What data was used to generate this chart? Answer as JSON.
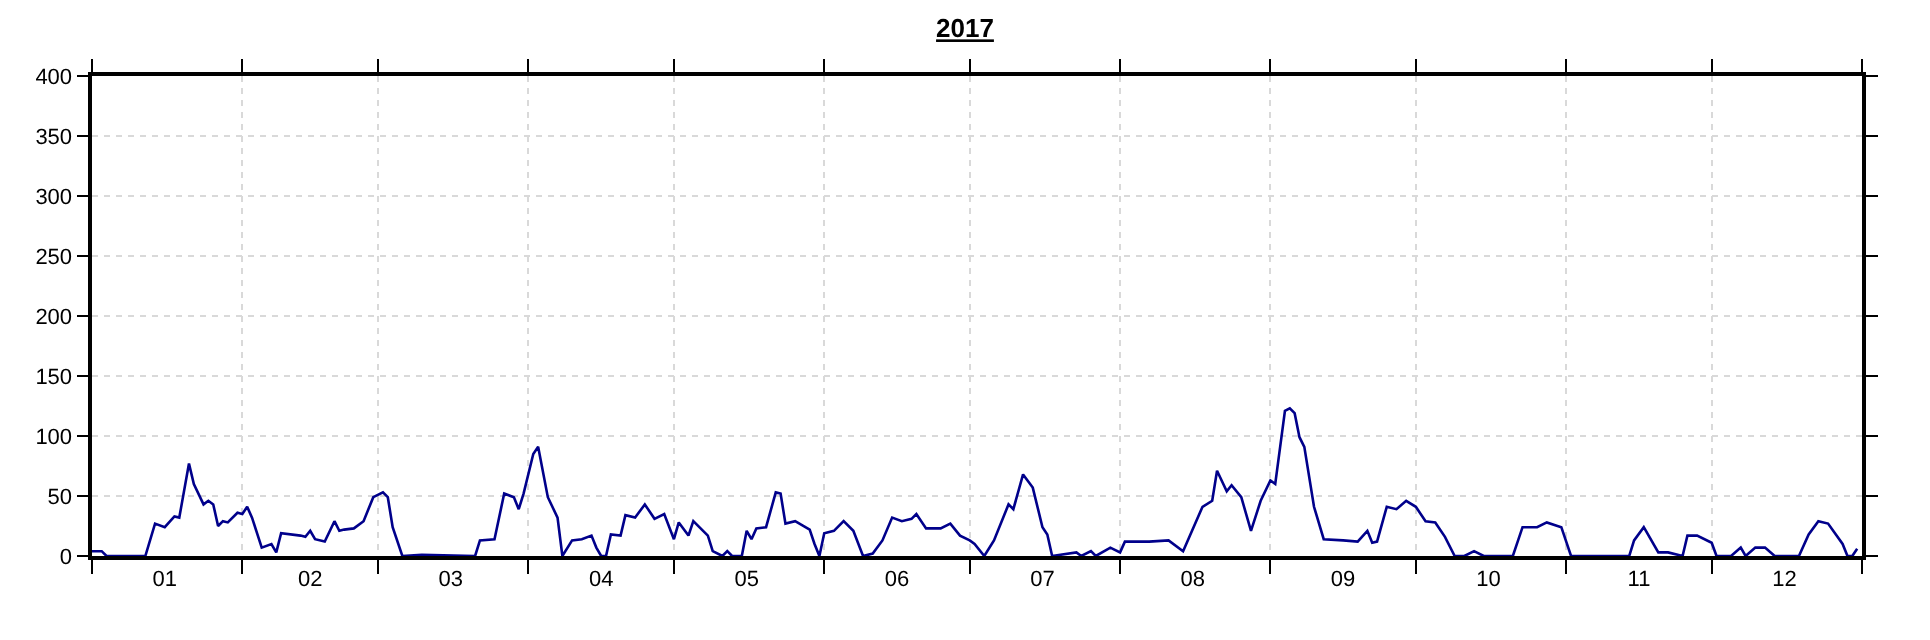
{
  "chart_data": {
    "type": "line",
    "title": "2017",
    "x": [
      "2017-01-01",
      "2017-01-03",
      "2017-01-04",
      "2017-01-12",
      "2017-01-14",
      "2017-01-16",
      "2017-01-18",
      "2017-01-19",
      "2017-01-21",
      "2017-01-22",
      "2017-01-24",
      "2017-01-25",
      "2017-01-26",
      "2017-01-27",
      "2017-01-28",
      "2017-01-29",
      "2017-01-31",
      "2017-02-01",
      "2017-02-02",
      "2017-02-03",
      "2017-02-05",
      "2017-02-07",
      "2017-02-08",
      "2017-02-09",
      "2017-02-13",
      "2017-02-14",
      "2017-02-15",
      "2017-02-16",
      "2017-02-18",
      "2017-02-20",
      "2017-02-21",
      "2017-02-22",
      "2017-02-24",
      "2017-02-26",
      "2017-02-28",
      "2017-03-02",
      "2017-03-03",
      "2017-03-04",
      "2017-03-06",
      "2017-03-10",
      "2017-03-21",
      "2017-03-22",
      "2017-03-25",
      "2017-03-27",
      "2017-03-29",
      "2017-03-30",
      "2017-03-31",
      "2017-04-02",
      "2017-04-03",
      "2017-04-05",
      "2017-04-07",
      "2017-04-08",
      "2017-04-10",
      "2017-04-12",
      "2017-04-14",
      "2017-04-15",
      "2017-04-16",
      "2017-04-17",
      "2017-04-18",
      "2017-04-20",
      "2017-04-21",
      "2017-04-23",
      "2017-04-25",
      "2017-04-27",
      "2017-04-29",
      "2017-05-01",
      "2017-05-02",
      "2017-05-04",
      "2017-05-05",
      "2017-05-08",
      "2017-05-09",
      "2017-05-11",
      "2017-05-12",
      "2017-05-13",
      "2017-05-15",
      "2017-05-16",
      "2017-05-17",
      "2017-05-18",
      "2017-05-20",
      "2017-05-22",
      "2017-05-23",
      "2017-05-24",
      "2017-05-26",
      "2017-05-29",
      "2017-05-30",
      "2017-05-31",
      "2017-06-01",
      "2017-06-03",
      "2017-06-05",
      "2017-06-07",
      "2017-06-09",
      "2017-06-11",
      "2017-06-13",
      "2017-06-15",
      "2017-06-17",
      "2017-06-19",
      "2017-06-20",
      "2017-06-22",
      "2017-06-25",
      "2017-06-27",
      "2017-06-29",
      "2017-07-01",
      "2017-07-02",
      "2017-07-04",
      "2017-07-06",
      "2017-07-09",
      "2017-07-10",
      "2017-07-12",
      "2017-07-14",
      "2017-07-16",
      "2017-07-17",
      "2017-07-18",
      "2017-07-23",
      "2017-07-24",
      "2017-07-26",
      "2017-07-27",
      "2017-07-30",
      "2017-08-01",
      "2017-08-02",
      "2017-08-07",
      "2017-08-11",
      "2017-08-14",
      "2017-08-18",
      "2017-08-20",
      "2017-08-21",
      "2017-08-23",
      "2017-08-24",
      "2017-08-26",
      "2017-08-28",
      "2017-08-30",
      "2017-09-01",
      "2017-09-02",
      "2017-09-04",
      "2017-09-05",
      "2017-09-06",
      "2017-09-07",
      "2017-09-08",
      "2017-09-10",
      "2017-09-12",
      "2017-09-16",
      "2017-09-19",
      "2017-09-21",
      "2017-09-22",
      "2017-09-23",
      "2017-09-25",
      "2017-09-27",
      "2017-09-29",
      "2017-10-01",
      "2017-10-03",
      "2017-10-05",
      "2017-10-07",
      "2017-10-09",
      "2017-10-11",
      "2017-10-13",
      "2017-10-15",
      "2017-10-21",
      "2017-10-23",
      "2017-10-26",
      "2017-10-28",
      "2017-10-31",
      "2017-11-02",
      "2017-11-14",
      "2017-11-15",
      "2017-11-17",
      "2017-11-20",
      "2017-11-22",
      "2017-11-25",
      "2017-11-26",
      "2017-11-28",
      "2017-12-01",
      "2017-12-02",
      "2017-12-05",
      "2017-12-07",
      "2017-12-08",
      "2017-12-10",
      "2017-12-12",
      "2017-12-14",
      "2017-12-19",
      "2017-12-21",
      "2017-12-23",
      "2017-12-25",
      "2017-12-28",
      "2017-12-29",
      "2017-12-30",
      "2017-12-31"
    ],
    "series": [
      {
        "color": "#00008b",
        "values": [
          4,
          4,
          0,
          0,
          27,
          24,
          33,
          32,
          77,
          60,
          43,
          46,
          43,
          25,
          29,
          28,
          36,
          35,
          41,
          32,
          7,
          10,
          3,
          19,
          17,
          16,
          21,
          14,
          12,
          29,
          21,
          22,
          23,
          29,
          49,
          53,
          49,
          24,
          0,
          1,
          0,
          13,
          14,
          52,
          49,
          39,
          52,
          85,
          91,
          49,
          32,
          0,
          13,
          14,
          17,
          7,
          0,
          0,
          18,
          17,
          34,
          32,
          43,
          31,
          35,
          14,
          28,
          17,
          29,
          17,
          4,
          0,
          4,
          0,
          0,
          21,
          14,
          23,
          24,
          53,
          52,
          27,
          29,
          22,
          10,
          0,
          19,
          21,
          29,
          21,
          0,
          2,
          13,
          32,
          29,
          31,
          35,
          23,
          23,
          27,
          17,
          13,
          10,
          0,
          13,
          43,
          39,
          68,
          57,
          24,
          18,
          0,
          3,
          0,
          4,
          0,
          7,
          3,
          12,
          12,
          13,
          4,
          41,
          46,
          71,
          54,
          59,
          49,
          21,
          46,
          63,
          60,
          121,
          123,
          119,
          99,
          91,
          41,
          14,
          13,
          12,
          21,
          11,
          12,
          41,
          39,
          46,
          41,
          29,
          28,
          16,
          0,
          0,
          4,
          0,
          0,
          24,
          24,
          28,
          24,
          0,
          0,
          13,
          24,
          3,
          3,
          0,
          17,
          17,
          11,
          0,
          0,
          7,
          0,
          7,
          7,
          0,
          0,
          18,
          29,
          27,
          10,
          0,
          0,
          6
        ]
      }
    ],
    "xlim": [
      "2017-01-01",
      "2018-01-01"
    ],
    "xticks": [
      {
        "value": "2017-01-01",
        "label": null
      },
      {
        "value": "2017-01-16",
        "label": "01"
      },
      {
        "value": "2017-02-01",
        "label": null
      },
      {
        "value": "2017-02-15",
        "label": "02"
      },
      {
        "value": "2017-03-01",
        "label": null
      },
      {
        "value": "2017-03-16",
        "label": "03"
      },
      {
        "value": "2017-04-01",
        "label": null
      },
      {
        "value": "2017-04-16",
        "label": "04"
      },
      {
        "value": "2017-05-01",
        "label": null
      },
      {
        "value": "2017-05-16",
        "label": "05"
      },
      {
        "value": "2017-06-01",
        "label": null
      },
      {
        "value": "2017-06-16",
        "label": "06"
      },
      {
        "value": "2017-07-01",
        "label": null
      },
      {
        "value": "2017-07-16",
        "label": "07"
      },
      {
        "value": "2017-08-01",
        "label": null
      },
      {
        "value": "2017-08-16",
        "label": "08"
      },
      {
        "value": "2017-09-01",
        "label": null
      },
      {
        "value": "2017-09-16",
        "label": "09"
      },
      {
        "value": "2017-10-01",
        "label": null
      },
      {
        "value": "2017-10-16",
        "label": "10"
      },
      {
        "value": "2017-11-01",
        "label": null
      },
      {
        "value": "2017-11-16",
        "label": "11"
      },
      {
        "value": "2017-12-01",
        "label": null
      },
      {
        "value": "2017-12-16",
        "label": "12"
      },
      {
        "value": "2018-01-01",
        "label": null
      }
    ],
    "ylim": [
      0,
      400
    ],
    "yticks": [
      0,
      50,
      100,
      150,
      200,
      250,
      300,
      350,
      400
    ],
    "grid": true,
    "marker": "none",
    "line_style": "solid"
  }
}
